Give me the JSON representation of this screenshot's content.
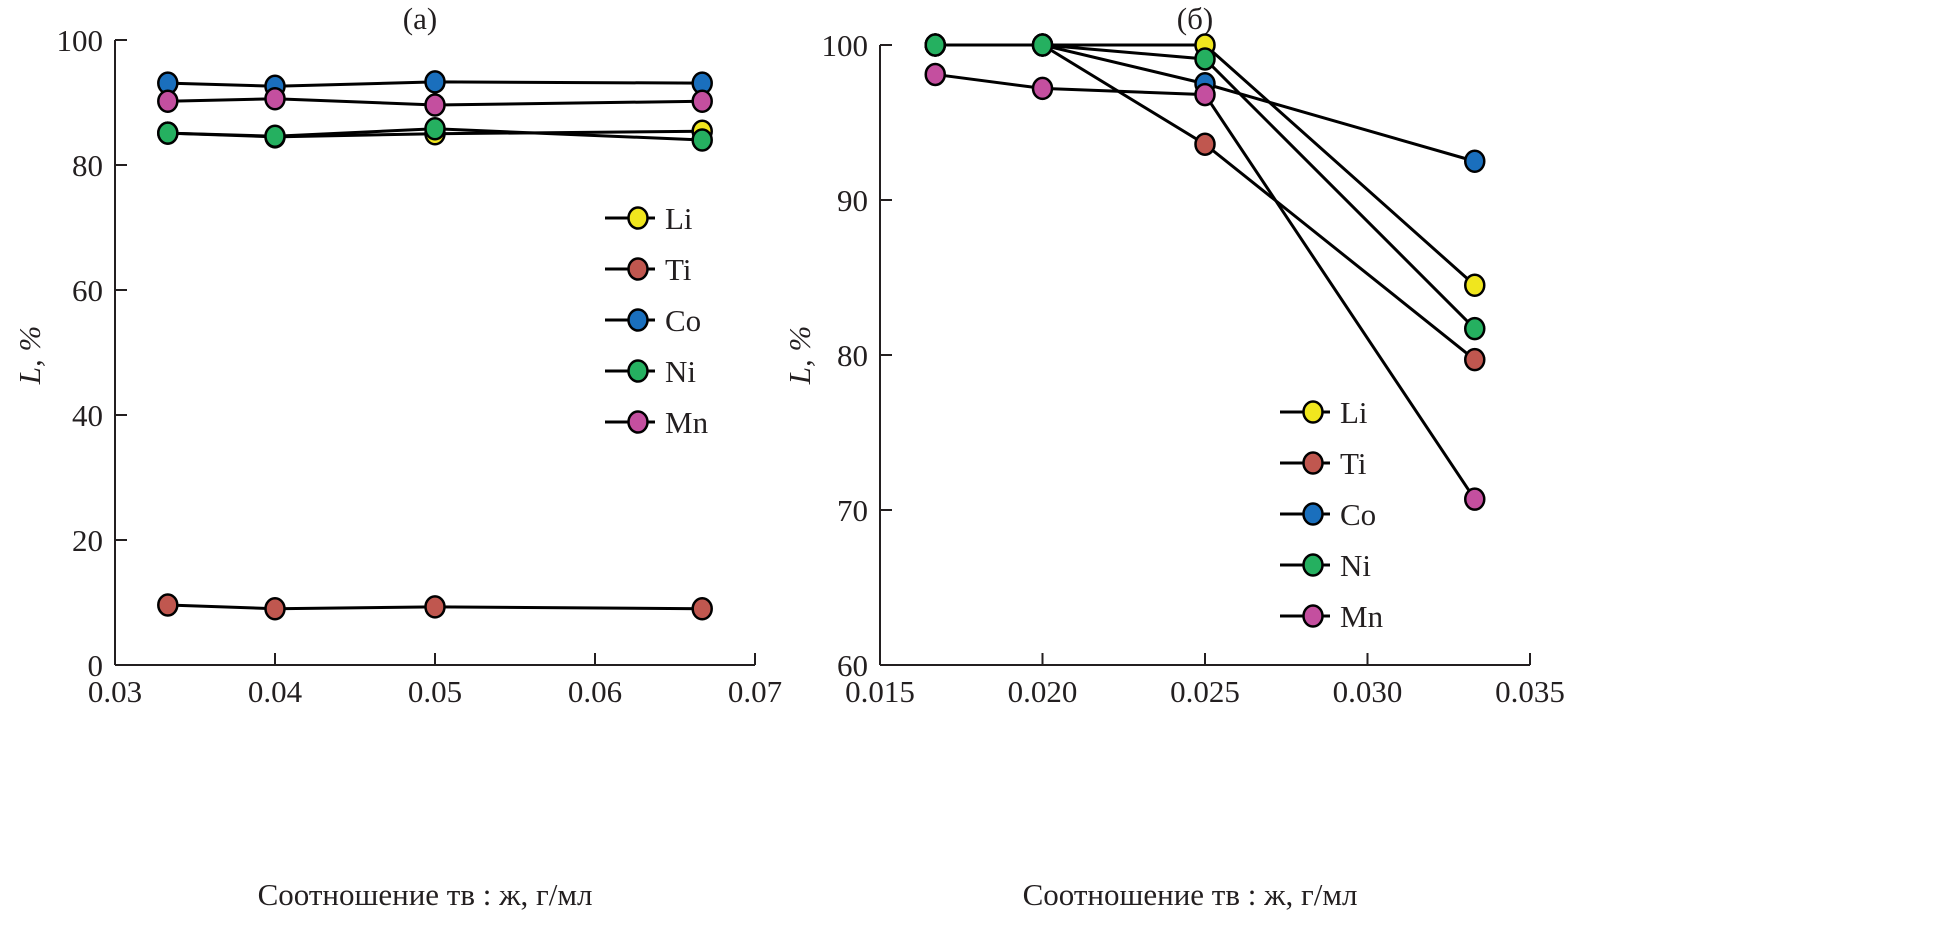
{
  "chart_data": [
    {
      "type": "line",
      "title": "(a)",
      "xlabel": "Соотношение тв : ж, г/мл",
      "ylabel": "L, %",
      "xlim": [
        0.03,
        0.07
      ],
      "ylim": [
        0,
        100
      ],
      "xticks": [
        "0.03",
        "0.04",
        "0.05",
        "0.06",
        "0.07"
      ],
      "yticks": [
        "0",
        "20",
        "40",
        "60",
        "80",
        "100"
      ],
      "xtick_values": [
        0.03,
        0.04,
        0.05,
        0.06,
        0.07
      ],
      "ytick_values": [
        0,
        20,
        40,
        60,
        80,
        100
      ],
      "legend_position": "right",
      "x": [
        0.0333,
        0.04,
        0.05,
        0.0667
      ],
      "series": [
        {
          "name": "Li",
          "color": "#f0e61e",
          "values": [
            85.1,
            84.5,
            85.0,
            85.4
          ]
        },
        {
          "name": "Ti",
          "color": "#c0574f",
          "values": [
            9.6,
            9.0,
            9.3,
            9.0
          ]
        },
        {
          "name": "Co",
          "color": "#1a6fbd",
          "values": [
            93.1,
            92.6,
            93.3,
            93.1
          ]
        },
        {
          "name": "Ni",
          "color": "#25b060",
          "values": [
            85.1,
            84.6,
            85.8,
            84.0
          ]
        },
        {
          "name": "Mn",
          "color": "#c44f9f",
          "values": [
            90.2,
            90.6,
            89.6,
            90.2
          ]
        }
      ]
    },
    {
      "type": "line",
      "title": "(б)",
      "xlabel": "Соотношение тв : ж, г/мл",
      "ylabel": "L, %",
      "xlim": [
        0.015,
        0.035
      ],
      "ylim": [
        60,
        100
      ],
      "xticks": [
        "0.015",
        "0.020",
        "0.025",
        "0.030",
        "0.035"
      ],
      "yticks": [
        "60",
        "70",
        "80",
        "90",
        "100"
      ],
      "xtick_values": [
        0.015,
        0.02,
        0.025,
        0.03,
        0.035
      ],
      "ytick_values": [
        60,
        70,
        80,
        90,
        100
      ],
      "legend_position": "bottom-right",
      "x": [
        0.0167,
        0.02,
        0.025,
        0.0333
      ],
      "series": [
        {
          "name": "Li",
          "color": "#f0e61e",
          "values": [
            100,
            100,
            100,
            84.5
          ]
        },
        {
          "name": "Ti",
          "color": "#c0574f",
          "values": [
            100,
            100,
            93.6,
            79.7
          ]
        },
        {
          "name": "Co",
          "color": "#1a6fbd",
          "values": [
            100,
            100,
            97.5,
            92.5
          ]
        },
        {
          "name": "Ni",
          "color": "#25b060",
          "values": [
            100,
            100,
            99.1,
            81.7
          ]
        },
        {
          "name": "Mn",
          "color": "#c44f9f",
          "values": [
            98.1,
            97.2,
            96.8,
            70.7
          ]
        }
      ]
    }
  ]
}
